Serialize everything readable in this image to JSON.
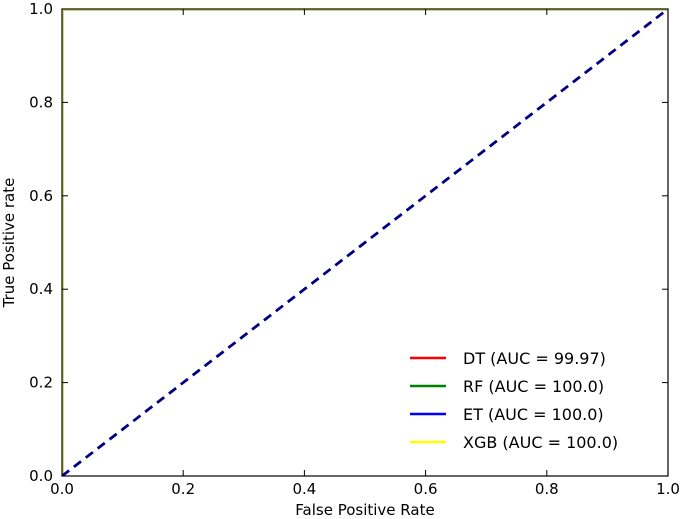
{
  "chart_data": {
    "type": "line",
    "xlabel": "False Positive Rate",
    "ylabel": "True Positive rate",
    "xlim": [
      0,
      1
    ],
    "ylim": [
      0,
      1
    ],
    "xticks": [
      "0.0",
      "0.2",
      "0.4",
      "0.6",
      "0.8",
      "1.0"
    ],
    "yticks": [
      "0.0",
      "0.2",
      "0.4",
      "0.6",
      "0.8",
      "1.0"
    ],
    "xtick_values": [
      0,
      0.2,
      0.4,
      0.6,
      0.8,
      1.0
    ],
    "ytick_values": [
      0,
      0.2,
      0.4,
      0.6,
      0.8,
      1.0
    ],
    "grid": false,
    "legend_position": "lower-right",
    "series": [
      {
        "name": "DT (AUC = 99.97)",
        "color": "#ff0000",
        "x": [
          0,
          0.0,
          0.0007,
          0.004,
          1.0
        ],
        "y": [
          0,
          0.995,
          0.999,
          1.0,
          1.0
        ]
      },
      {
        "name": "RF (AUC = 100.0)",
        "color": "#008000",
        "x": [
          0,
          0.0,
          0.004,
          1.0
        ],
        "y": [
          0,
          0.998,
          1.0,
          1.0
        ]
      },
      {
        "name": "ET (AUC = 100.0)",
        "color": "#0000ff",
        "x": [
          0,
          0.0,
          0.004,
          1.0
        ],
        "y": [
          0,
          0.998,
          1.0,
          1.0
        ]
      },
      {
        "name": "XGB (AUC = 100.0)",
        "color": "#ffff00",
        "x": [
          0,
          0.0,
          0.004,
          1.0
        ],
        "y": [
          0,
          0.998,
          1.0,
          1.0
        ]
      }
    ],
    "reference_line": {
      "x": [
        0,
        1
      ],
      "y": [
        0,
        1
      ],
      "color": "#000080",
      "style": "dashed"
    }
  }
}
